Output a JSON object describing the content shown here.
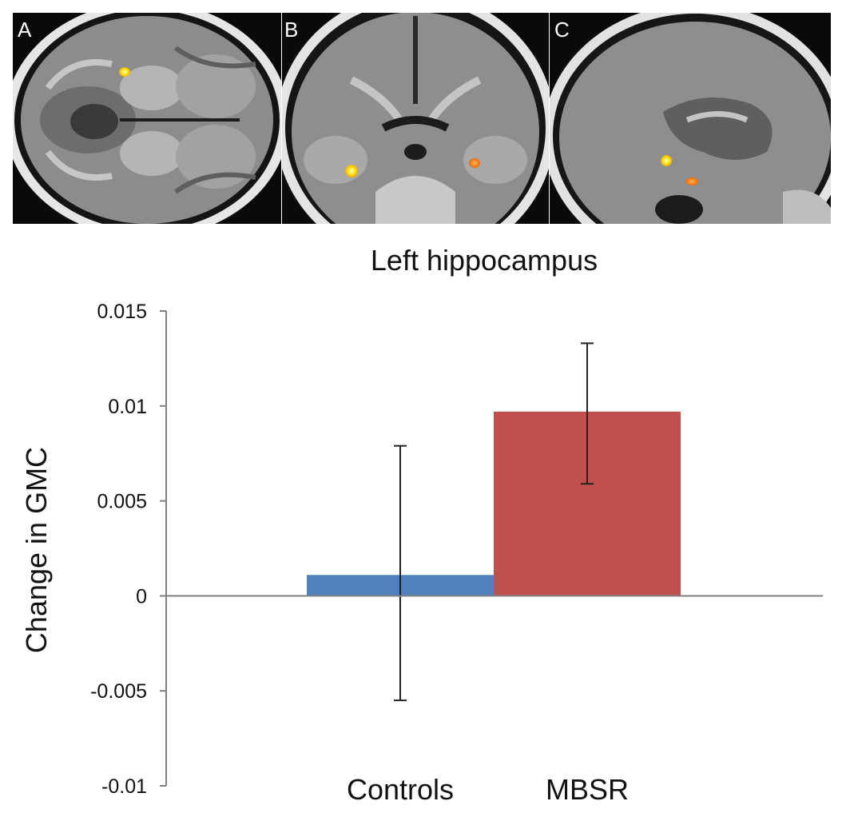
{
  "panels": [
    {
      "letter": "A",
      "view": "axial",
      "hotspot_colors": [
        "#ffee33"
      ]
    },
    {
      "letter": "B",
      "view": "coronal",
      "hotspot_colors": [
        "#ffdd22",
        "#ff8822"
      ]
    },
    {
      "letter": "C",
      "view": "sagittal",
      "hotspot_colors": [
        "#ffee33",
        "#ff8822"
      ]
    }
  ],
  "chart_data": {
    "type": "bar",
    "title": "Left hippocampus",
    "xlabel": "",
    "ylabel": "Change in GMC",
    "categories": [
      "Controls",
      "MBSR"
    ],
    "values": [
      0.0011,
      0.0097
    ],
    "error_low": [
      -0.0055,
      0.0059
    ],
    "error_high": [
      0.0079,
      0.0133
    ],
    "colors": [
      "#4f81bd",
      "#c0504d"
    ],
    "ylim": [
      -0.01,
      0.015
    ],
    "yticks": [
      0.015,
      0.01,
      0.005,
      0,
      -0.005,
      -0.01
    ],
    "ytick_labels": [
      "0.015",
      "0.01",
      "0.005",
      "0",
      "-0.005",
      "-0.01"
    ],
    "grid": false,
    "legend": "none"
  }
}
